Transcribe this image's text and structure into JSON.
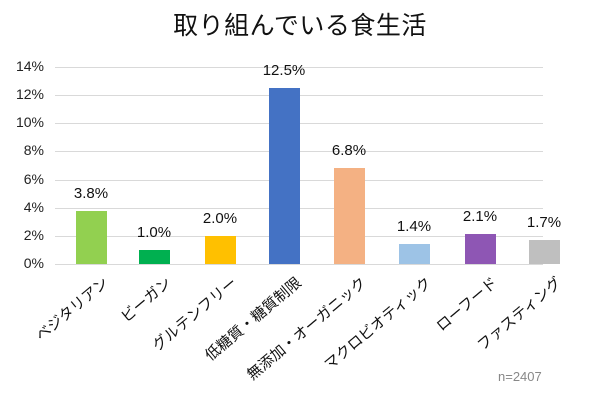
{
  "chart_data": {
    "type": "bar",
    "title": "取り組んでいる食生活",
    "xlabel": "",
    "ylabel": "",
    "ylim": [
      0,
      14
    ],
    "y_ticks": [
      "0%",
      "2%",
      "4%",
      "6%",
      "8%",
      "10%",
      "12%",
      "14%"
    ],
    "grid": true,
    "legend": "none",
    "categories": [
      "ベジタリアン",
      "ビーガン",
      "グルテンフリー",
      "低糖質・糖質制限",
      "無添加・オーガニック",
      "マクロビオティック",
      "ローフード",
      "ファスティング"
    ],
    "values": [
      3.8,
      1.0,
      2.0,
      12.5,
      6.8,
      1.4,
      2.1,
      1.7
    ],
    "value_labels": [
      "3.8%",
      "1.0%",
      "2.0%",
      "12.5%",
      "6.8%",
      "1.4%",
      "2.1%",
      "1.7%"
    ],
    "colors": [
      "#92d050",
      "#00b050",
      "#ffc000",
      "#4472c4",
      "#f4b183",
      "#9dc3e6",
      "#8e56b4",
      "#bfbfbf"
    ],
    "annotation": "n=2407"
  },
  "title": "取り組んでいる食生活",
  "note": "n=2407",
  "grid_color": "#d9d9d9"
}
